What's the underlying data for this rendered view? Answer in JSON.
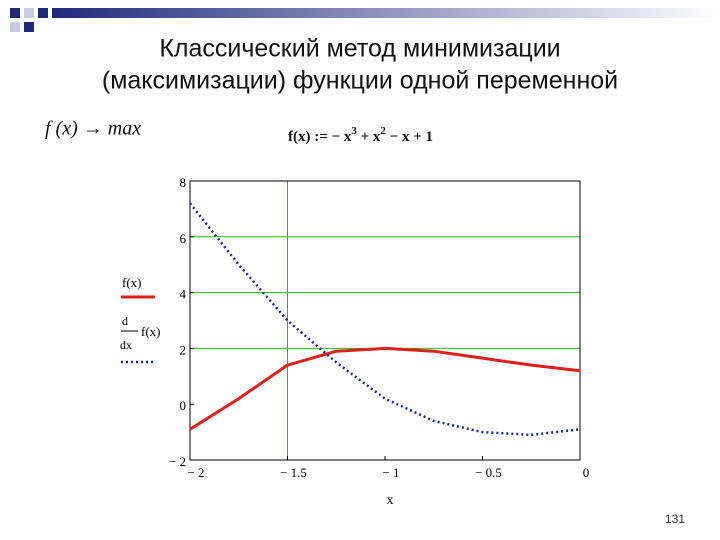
{
  "title_lines": [
    "Классический метод минимизации",
    "(максимизации) функции одной переменной"
  ],
  "objective": "f (x) → max",
  "formula": {
    "parts": [
      {
        "text": "f(x) := − x",
        "sup": false
      },
      {
        "text": "3",
        "sup": true
      },
      {
        "text": " + x",
        "sup": false
      },
      {
        "text": "2",
        "sup": true
      },
      {
        "text": " − x + 1",
        "sup": false
      }
    ]
  },
  "page_number": "131",
  "chart_data": {
    "type": "line",
    "x_label": "x",
    "x": [
      -2,
      -1.75,
      -1.5,
      -1.25,
      -1,
      -0.75,
      -0.5,
      -0.25,
      0
    ],
    "series": [
      {
        "name": "f(x)",
        "color": "#e0201b",
        "dash": false,
        "values": [
          -0.9,
          0.2,
          1.4,
          1.9,
          2.0,
          1.9,
          1.65,
          1.4,
          1.2
        ]
      },
      {
        "name": "f(x)",
        "derivative": {
          "numerator": "d",
          "denominator": "dx"
        },
        "color": "#1a2a9a",
        "dash": true,
        "values": [
          7.2,
          5.0,
          3.0,
          1.5,
          0.2,
          -0.6,
          -1.0,
          -1.1,
          -0.9
        ]
      }
    ],
    "xlim": [
      -2,
      0
    ],
    "ylim": [
      -2,
      8
    ],
    "xticks": [
      {
        "value": -2,
        "label": "− 2"
      },
      {
        "value": -1.5,
        "label": "− 1.5"
      },
      {
        "value": -1,
        "label": "− 1"
      },
      {
        "value": -0.5,
        "label": "− 0.5"
      },
      0
    ],
    "yticks": [
      {
        "value": -2,
        "label": "− 2"
      },
      0,
      2,
      4,
      6,
      8
    ],
    "grid_x": [
      -1.5
    ],
    "grid_y": [
      2,
      4,
      6
    ],
    "grid_color": "#22bb22"
  }
}
